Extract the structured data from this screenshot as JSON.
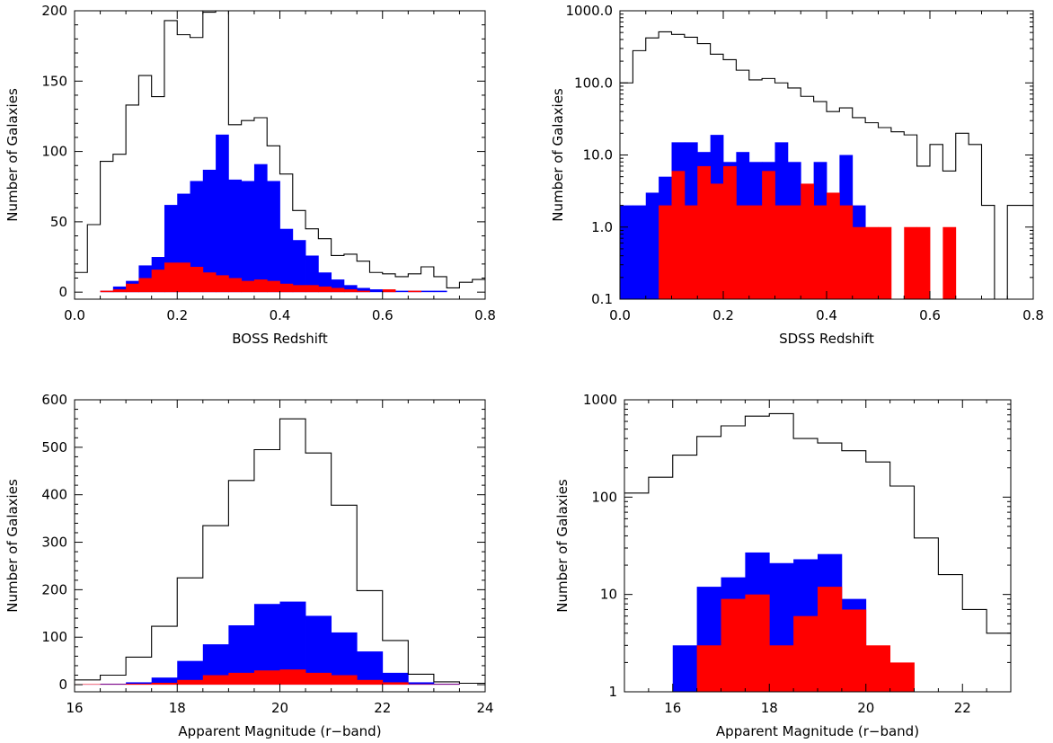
{
  "colors": {
    "all": "#000000",
    "blue": "#0000ff",
    "red": "#ff0000"
  },
  "chart_data": [
    {
      "id": "boss-redshift",
      "type": "histogram",
      "xlabel": "BOSS Redshift",
      "ylabel": "Number of Galaxies",
      "xlim": [
        0,
        0.8
      ],
      "ylim": [
        -5,
        200
      ],
      "yscale": "linear",
      "x_ticks": [
        0.0,
        0.2,
        0.4,
        0.6,
        0.8
      ],
      "x_tick_labels": [
        "0.0",
        "0.2",
        "0.4",
        "0.6",
        "0.8"
      ],
      "y_ticks": [
        0,
        50,
        100,
        150,
        200
      ],
      "y_tick_labels": [
        "0",
        "50",
        "100",
        "150",
        "200"
      ],
      "bin_start": 0.0,
      "bin_width": 0.025,
      "series": [
        {
          "role": "all",
          "style": "step",
          "values": [
            14,
            48,
            93,
            98,
            133,
            154,
            139,
            193,
            183,
            181,
            199,
            214,
            119,
            122,
            124,
            104,
            84,
            58,
            45,
            38,
            26,
            27,
            22,
            14,
            13,
            11,
            13,
            18,
            11,
            3,
            7,
            9
          ]
        },
        {
          "role": "blue",
          "style": "fill",
          "values": [
            0,
            0,
            1,
            4,
            8,
            19,
            25,
            62,
            70,
            79,
            87,
            112,
            80,
            79,
            91,
            79,
            45,
            37,
            26,
            14,
            9,
            5,
            3,
            2,
            1,
            1,
            1,
            1,
            1,
            0,
            0,
            0
          ]
        },
        {
          "role": "red",
          "style": "fill",
          "values": [
            0,
            0,
            1,
            2,
            6,
            10,
            16,
            21,
            21,
            18,
            14,
            12,
            10,
            8,
            9,
            8,
            6,
            5,
            5,
            4,
            3,
            2,
            1,
            0,
            2,
            0,
            1,
            0,
            0,
            0,
            0,
            0
          ]
        }
      ]
    },
    {
      "id": "sdss-redshift",
      "type": "histogram",
      "xlabel": "SDSS Redshift",
      "ylabel": "Number of Galaxies",
      "xlim": [
        0,
        0.8
      ],
      "ylim": [
        0.1,
        1000
      ],
      "yscale": "log",
      "x_ticks": [
        0.0,
        0.2,
        0.4,
        0.6,
        0.8
      ],
      "x_tick_labels": [
        "0.0",
        "0.2",
        "0.4",
        "0.6",
        "0.8"
      ],
      "y_ticks": [
        0.1,
        1,
        10,
        100,
        1000
      ],
      "y_tick_labels": [
        "0.1",
        "1.0",
        "10.0",
        "100.0",
        "1000.0"
      ],
      "bin_start": 0.0,
      "bin_width": 0.025,
      "series": [
        {
          "role": "all",
          "style": "step",
          "values": [
            100,
            280,
            420,
            510,
            470,
            430,
            350,
            250,
            210,
            150,
            110,
            115,
            100,
            85,
            65,
            55,
            40,
            45,
            33,
            28,
            24,
            21,
            19,
            7,
            14,
            6,
            20,
            14,
            2,
            0.1,
            2,
            2
          ]
        },
        {
          "role": "blue",
          "style": "fill",
          "values": [
            2,
            2,
            3,
            5,
            15,
            15,
            11,
            19,
            8,
            11,
            8,
            8,
            15,
            8,
            2,
            8,
            2,
            10,
            2,
            0,
            0,
            0,
            0,
            0,
            0,
            0,
            0,
            0,
            0,
            0,
            0,
            0
          ]
        },
        {
          "role": "red",
          "style": "fill",
          "values": [
            0,
            0,
            0,
            2,
            6,
            2,
            7,
            4,
            7,
            2,
            2,
            6,
            2,
            2,
            4,
            2,
            3,
            2,
            1,
            1,
            1,
            0,
            1,
            1,
            0,
            1,
            0,
            0,
            0,
            0,
            0,
            0
          ]
        }
      ]
    },
    {
      "id": "boss-magnitude",
      "type": "histogram",
      "xlabel": "Apparent Magnitude (r−band)",
      "ylabel": "Number of Galaxies",
      "xlim": [
        16,
        24
      ],
      "ylim": [
        -15,
        600
      ],
      "yscale": "linear",
      "x_ticks": [
        16,
        18,
        20,
        22,
        24
      ],
      "x_tick_labels": [
        "16",
        "18",
        "20",
        "22",
        "24"
      ],
      "y_ticks": [
        0,
        100,
        200,
        300,
        400,
        500,
        600
      ],
      "y_tick_labels": [
        "0",
        "100",
        "200",
        "300",
        "400",
        "500",
        "600"
      ],
      "bin_start": 16.0,
      "bin_width": 0.5,
      "series": [
        {
          "role": "all",
          "style": "step",
          "values": [
            10,
            20,
            58,
            123,
            225,
            335,
            430,
            495,
            560,
            488,
            378,
            198,
            93,
            22,
            6,
            3
          ]
        },
        {
          "role": "blue",
          "style": "fill",
          "values": [
            1,
            2,
            5,
            15,
            50,
            85,
            125,
            170,
            175,
            145,
            110,
            70,
            25,
            5,
            2,
            0
          ]
        },
        {
          "role": "red",
          "style": "fill",
          "values": [
            1,
            1,
            2,
            4,
            10,
            20,
            25,
            30,
            32,
            25,
            20,
            10,
            5,
            1,
            1,
            0
          ]
        }
      ]
    },
    {
      "id": "sdss-magnitude",
      "type": "histogram",
      "xlabel": "Apparent  Magnitude (r−band)",
      "ylabel": "Number of Galaxies",
      "xlim": [
        15,
        23
      ],
      "ylim": [
        1,
        1000
      ],
      "yscale": "log",
      "x_ticks": [
        16,
        18,
        20,
        22
      ],
      "x_tick_labels": [
        "16",
        "18",
        "20",
        "22"
      ],
      "y_ticks": [
        1,
        10,
        100,
        1000
      ],
      "y_tick_labels": [
        "1",
        "10",
        "100",
        "1000"
      ],
      "bin_start": 15.0,
      "bin_width": 0.5,
      "series": [
        {
          "role": "all",
          "style": "step",
          "values": [
            110,
            160,
            270,
            420,
            540,
            680,
            720,
            400,
            360,
            300,
            230,
            130,
            38,
            16,
            7,
            4
          ]
        },
        {
          "role": "blue",
          "style": "fill",
          "values": [
            0,
            0,
            3,
            12,
            15,
            27,
            21,
            23,
            26,
            9,
            0,
            0,
            0,
            0,
            0,
            0
          ]
        },
        {
          "role": "red",
          "style": "fill",
          "values": [
            0,
            0,
            0,
            3,
            9,
            10,
            3,
            6,
            12,
            7,
            3,
            2,
            0,
            0,
            0,
            0
          ]
        }
      ]
    }
  ]
}
